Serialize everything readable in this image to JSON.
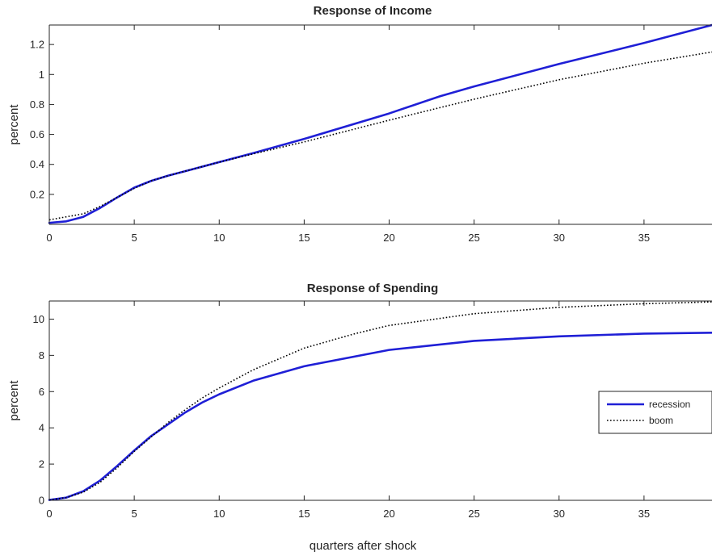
{
  "chart_data": [
    {
      "type": "line",
      "title": "Response of Income",
      "xlabel": "",
      "ylabel": "percent",
      "xlim": [
        0,
        39
      ],
      "ylim": [
        0,
        1.33
      ],
      "xticks": [
        0,
        5,
        10,
        15,
        20,
        25,
        30,
        35
      ],
      "yticks": [
        0.2,
        0.4,
        0.6,
        0.8,
        1,
        1.2
      ],
      "ytick_labels": [
        "0.2",
        "0.4",
        "0.6",
        "0.8",
        "1",
        "1.2"
      ],
      "grid": false,
      "series": [
        {
          "name": "recession",
          "style": "solid",
          "color": "#1f1fd6",
          "x": [
            0,
            1,
            2,
            3,
            4,
            5,
            6,
            7,
            8,
            10,
            12,
            15,
            20,
            23,
            25,
            30,
            35,
            39
          ],
          "y": [
            0.01,
            0.02,
            0.05,
            0.11,
            0.18,
            0.245,
            0.29,
            0.325,
            0.355,
            0.415,
            0.475,
            0.57,
            0.74,
            0.855,
            0.92,
            1.07,
            1.21,
            1.33
          ]
        },
        {
          "name": "boom",
          "style": "dotted",
          "color": "#000000",
          "x": [
            0,
            1,
            2,
            3,
            4,
            5,
            6,
            7,
            8,
            10,
            12,
            15,
            20,
            25,
            30,
            35,
            39
          ],
          "y": [
            0.03,
            0.05,
            0.07,
            0.12,
            0.18,
            0.24,
            0.29,
            0.325,
            0.355,
            0.415,
            0.47,
            0.55,
            0.695,
            0.835,
            0.965,
            1.075,
            1.15
          ]
        }
      ]
    },
    {
      "type": "line",
      "title": "Response of Spending",
      "xlabel": "quarters after shock",
      "ylabel": "percent",
      "xlim": [
        0,
        39
      ],
      "ylim": [
        0,
        11
      ],
      "xticks": [
        0,
        5,
        10,
        15,
        20,
        25,
        30,
        35
      ],
      "yticks": [
        0,
        2,
        4,
        6,
        8,
        10
      ],
      "ytick_labels": [
        "0",
        "2",
        "4",
        "6",
        "8",
        "10"
      ],
      "grid": false,
      "legend": {
        "location": "right",
        "entries": [
          "recession",
          "boom"
        ]
      },
      "series": [
        {
          "name": "recession",
          "style": "solid",
          "color": "#1f1fd6",
          "x": [
            0,
            1,
            2,
            3,
            4,
            5,
            6,
            7,
            8,
            9,
            10,
            12,
            15,
            20,
            25,
            30,
            35,
            39
          ],
          "y": [
            0.02,
            0.15,
            0.5,
            1.1,
            1.9,
            2.75,
            3.55,
            4.2,
            4.85,
            5.4,
            5.85,
            6.6,
            7.4,
            8.3,
            8.8,
            9.05,
            9.2,
            9.25
          ]
        },
        {
          "name": "boom",
          "style": "dotted",
          "color": "#000000",
          "x": [
            0,
            1,
            2,
            3,
            4,
            5,
            6,
            7,
            8,
            9,
            10,
            12,
            15,
            18,
            20,
            25,
            30,
            35,
            39
          ],
          "y": [
            0.02,
            0.15,
            0.45,
            1.0,
            1.8,
            2.7,
            3.5,
            4.3,
            5.0,
            5.65,
            6.2,
            7.2,
            8.4,
            9.2,
            9.65,
            10.3,
            10.65,
            10.85,
            10.95
          ]
        }
      ]
    }
  ]
}
